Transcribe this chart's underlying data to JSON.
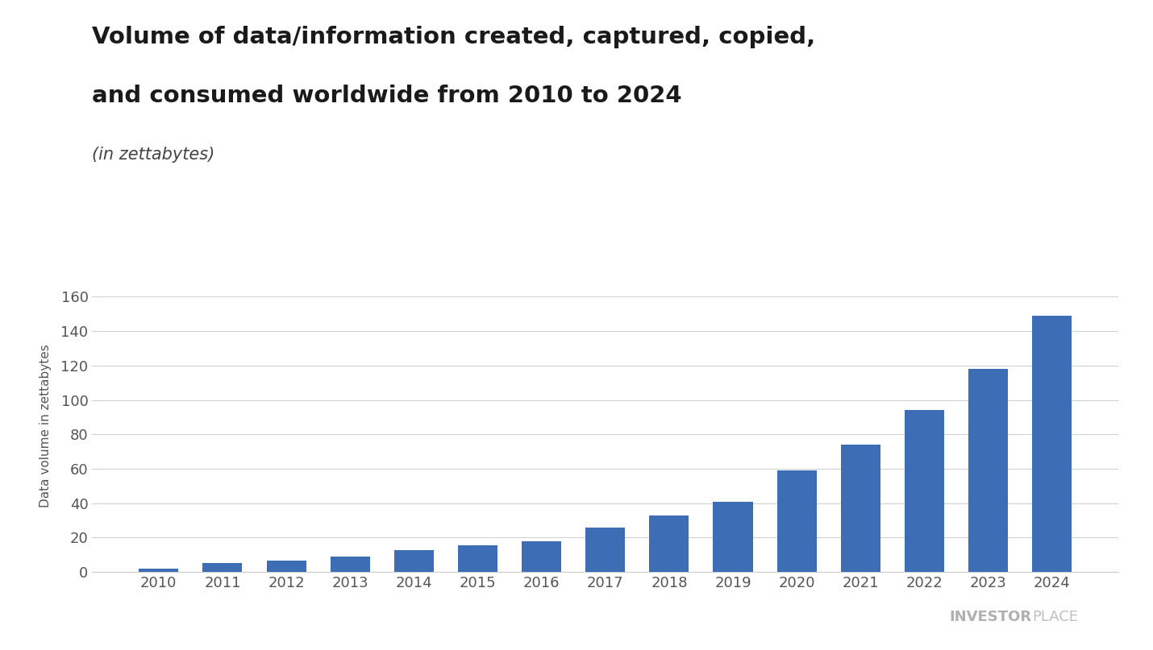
{
  "title_line1": "Volume of data/information created, captured, copied,",
  "title_line2": "and consumed worldwide from 2010 to 2024",
  "subtitle": "(in zettabytes)",
  "ylabel": "Data volume in zettabytes",
  "years": [
    2010,
    2011,
    2012,
    2013,
    2014,
    2015,
    2016,
    2017,
    2018,
    2019,
    2020,
    2021,
    2022,
    2023,
    2024
  ],
  "values": [
    2,
    5,
    6.5,
    9,
    12.5,
    15.5,
    18,
    26,
    33,
    41,
    59,
    74,
    94,
    118,
    149
  ],
  "bar_color": "#3d6db5",
  "background_color": "#ffffff",
  "ylim": [
    0,
    170
  ],
  "yticks": [
    0,
    20,
    40,
    60,
    80,
    100,
    120,
    140,
    160
  ],
  "grid_color": "#d0d0d0",
  "title_fontsize": 21,
  "subtitle_fontsize": 15,
  "tick_fontsize": 13,
  "ylabel_fontsize": 11,
  "watermark_bold": "INVESTOR",
  "watermark_regular": "PLACE",
  "bar_width": 0.62
}
